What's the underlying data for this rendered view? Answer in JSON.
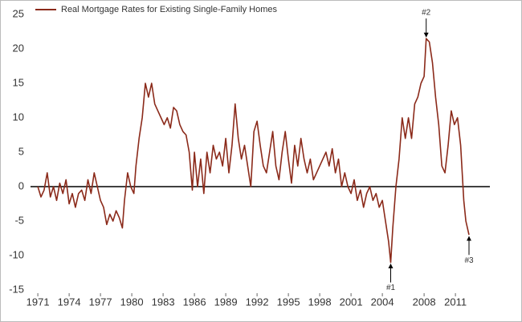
{
  "chart_data": {
    "type": "line",
    "series": [
      {
        "name": "Real Mortgage Rates for Existing Single-Family Homes",
        "color": "#8b2a1a",
        "x": [
          1971.0,
          1971.3,
          1971.6,
          1971.9,
          1972.2,
          1972.5,
          1972.8,
          1973.1,
          1973.4,
          1973.7,
          1974.0,
          1974.3,
          1974.6,
          1974.9,
          1975.2,
          1975.5,
          1975.8,
          1976.1,
          1976.4,
          1976.7,
          1977.0,
          1977.3,
          1977.6,
          1977.9,
          1978.2,
          1978.5,
          1978.8,
          1979.1,
          1979.3,
          1979.6,
          1979.9,
          1980.2,
          1980.4,
          1980.7,
          1981.0,
          1981.3,
          1981.6,
          1981.9,
          1982.2,
          1982.5,
          1982.8,
          1983.1,
          1983.4,
          1983.7,
          1984.0,
          1984.3,
          1984.6,
          1984.9,
          1985.2,
          1985.5,
          1985.8,
          1986.0,
          1986.3,
          1986.6,
          1986.9,
          1987.2,
          1987.5,
          1987.8,
          1988.1,
          1988.4,
          1988.7,
          1989.0,
          1989.3,
          1989.6,
          1989.9,
          1990.2,
          1990.5,
          1990.8,
          1991.1,
          1991.4,
          1991.7,
          1992.0,
          1992.3,
          1992.6,
          1992.9,
          1993.2,
          1993.5,
          1993.8,
          1994.1,
          1994.4,
          1994.7,
          1995.0,
          1995.3,
          1995.6,
          1995.9,
          1996.2,
          1996.5,
          1996.8,
          1997.1,
          1997.4,
          1997.7,
          1998.0,
          1998.3,
          1998.6,
          1998.9,
          1999.2,
          1999.5,
          1999.8,
          2000.1,
          2000.4,
          2000.7,
          2001.0,
          2001.3,
          2001.6,
          2001.9,
          2002.2,
          2002.5,
          2002.8,
          2003.1,
          2003.4,
          2003.7,
          2004.0,
          2004.3,
          2004.6,
          2004.8,
          2005.0,
          2005.3,
          2005.6,
          2005.9,
          2006.2,
          2006.5,
          2006.8,
          2007.1,
          2007.4,
          2007.7,
          2008.0,
          2008.2,
          2008.5,
          2008.8,
          2009.1,
          2009.4,
          2009.7,
          2010.0,
          2010.3,
          2010.6,
          2010.9,
          2011.2,
          2011.5,
          2011.8,
          2012.0,
          2012.3
        ],
        "values": [
          0,
          -1.5,
          -0.5,
          2,
          -1.5,
          0,
          -2,
          0.5,
          -1,
          1,
          -2.5,
          -1,
          -3,
          -1,
          -0.5,
          -2,
          1,
          -1,
          2,
          0,
          -2,
          -3,
          -5.5,
          -4,
          -5,
          -3.5,
          -4.5,
          -6,
          -2,
          2,
          0,
          -1,
          3,
          7,
          10,
          15,
          13,
          15,
          12,
          11,
          10,
          9,
          10,
          8.5,
          11.5,
          11,
          9,
          8,
          7.5,
          5,
          -0.5,
          5,
          0,
          4,
          -1,
          5,
          2,
          6,
          4,
          5,
          3,
          7,
          2,
          6,
          12,
          7,
          4,
          6,
          3,
          0,
          8,
          9.5,
          6,
          3,
          2,
          5,
          8,
          3,
          1,
          5,
          8,
          4,
          0.5,
          6,
          3,
          7,
          4,
          2,
          4,
          1,
          2,
          3,
          4,
          5,
          3,
          5.5,
          2,
          4,
          0,
          2,
          0,
          -1,
          1,
          -2,
          -0.5,
          -3,
          -1,
          0,
          -2,
          -1,
          -3,
          -2,
          -5,
          -8,
          -11,
          -6,
          0,
          4,
          10,
          7,
          10,
          7,
          12,
          13,
          15,
          16,
          21.5,
          21,
          18,
          13,
          9,
          3,
          2,
          6,
          11,
          9,
          10,
          6,
          -2,
          -5,
          -7
        ]
      }
    ],
    "xlim": [
      1970.3,
      2014.3
    ],
    "xticks": [
      1971,
      1974,
      1977,
      1980,
      1983,
      1986,
      1989,
      1992,
      1995,
      1998,
      2001,
      2004,
      2008,
      2011
    ],
    "ylim": [
      -15,
      25
    ],
    "yticks": [
      -15,
      -10,
      -5,
      0,
      5,
      10,
      15,
      20,
      25
    ],
    "annotations": [
      {
        "text": "#1",
        "x": 2004.8,
        "y": -11
      },
      {
        "text": "#2",
        "x": 2008.2,
        "y": 21.5
      },
      {
        "text": "#3",
        "x": 2012.3,
        "y": -7
      }
    ]
  }
}
